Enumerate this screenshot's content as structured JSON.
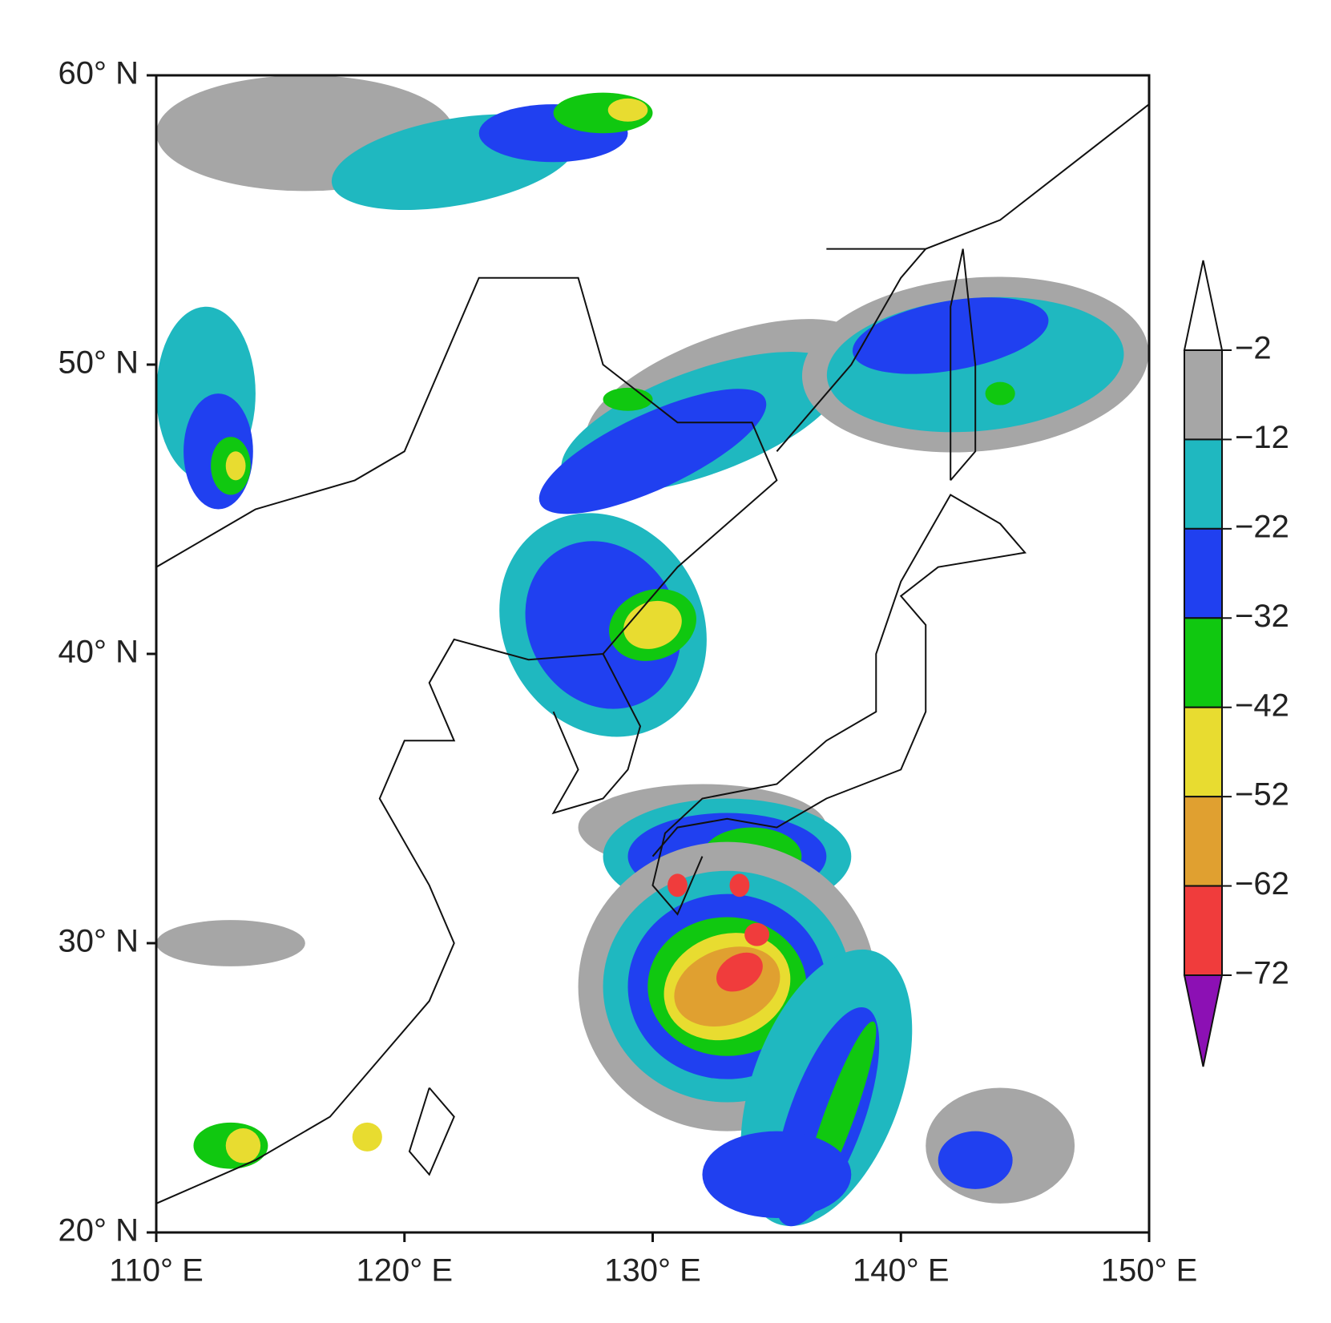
{
  "map": {
    "xlim": [
      110,
      150
    ],
    "ylim": [
      20,
      60
    ],
    "xticks": [
      {
        "value": 110,
        "label": "110° E"
      },
      {
        "value": 120,
        "label": "120° E"
      },
      {
        "value": 130,
        "label": "130° E"
      },
      {
        "value": 140,
        "label": "140° E"
      },
      {
        "value": 150,
        "label": "150° E"
      }
    ],
    "yticks": [
      {
        "value": 20,
        "label": "20° N"
      },
      {
        "value": 30,
        "label": "30° N"
      },
      {
        "value": 40,
        "label": "40° N"
      },
      {
        "value": 50,
        "label": "50° N"
      },
      {
        "value": 60,
        "label": "60° N"
      }
    ],
    "colorbar": {
      "ticks": [
        {
          "value": -2,
          "label": "−2"
        },
        {
          "value": -12,
          "label": "−12"
        },
        {
          "value": -22,
          "label": "−22"
        },
        {
          "value": -32,
          "label": "−32"
        },
        {
          "value": -42,
          "label": "−42"
        },
        {
          "value": -52,
          "label": "−52"
        },
        {
          "value": -62,
          "label": "−62"
        },
        {
          "value": -72,
          "label": "−72"
        }
      ],
      "colors": [
        "#a6a6a6",
        "#1fb8c0",
        "#2040f0",
        "#10c810",
        "#e8dc30",
        "#e0a030",
        "#f03c3c"
      ],
      "over_color": "#ffffff",
      "under_color": "#8c10b4"
    }
  }
}
